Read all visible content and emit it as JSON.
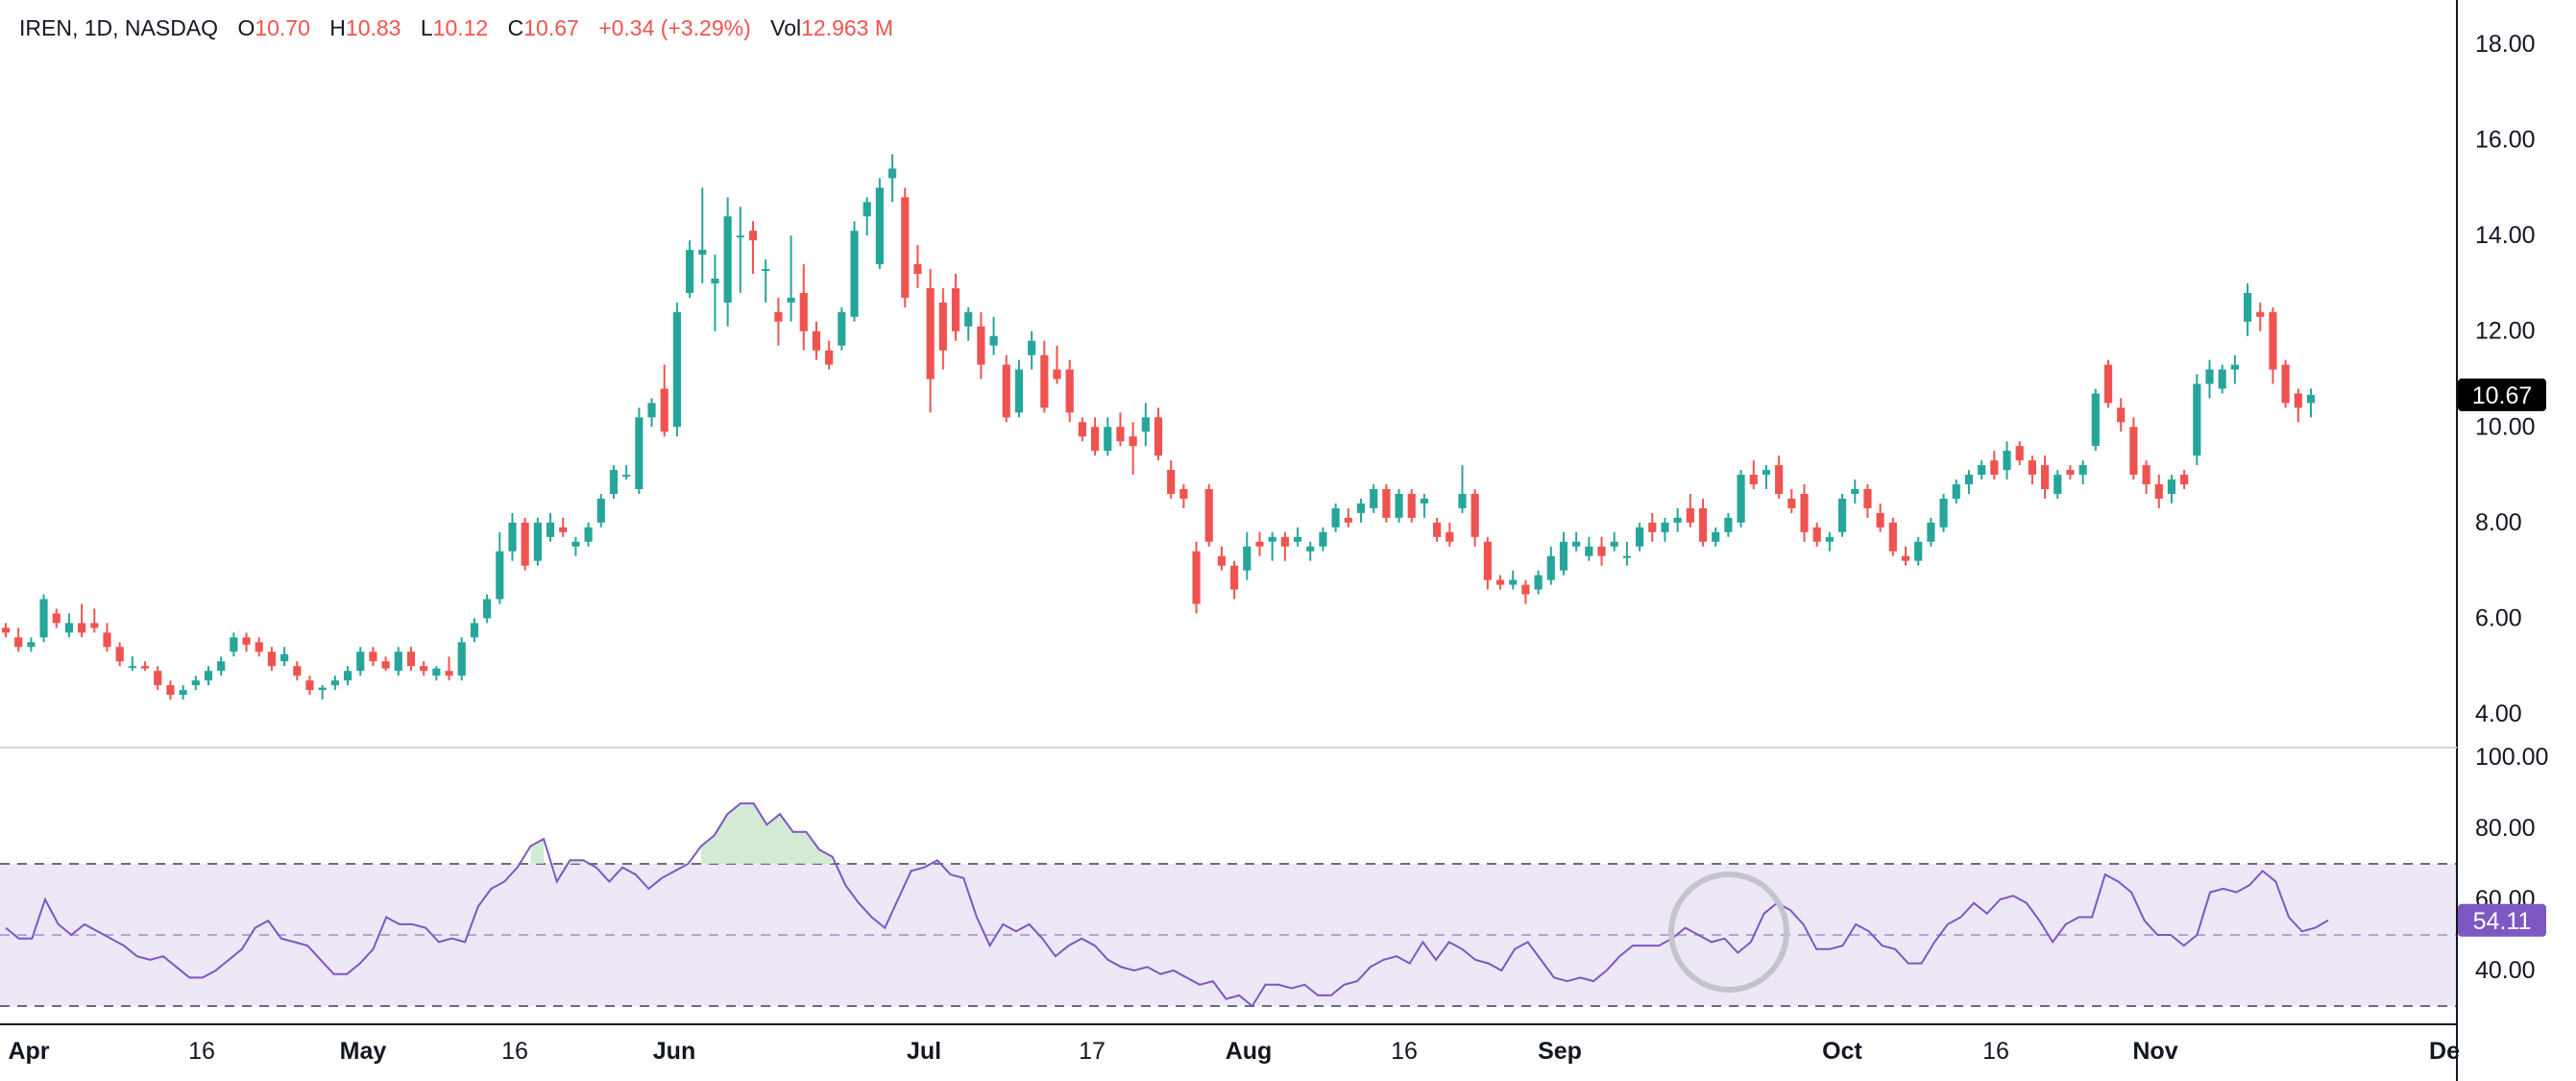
{
  "header": {
    "symbol_line": "IREN, 1D, NASDAQ",
    "open_label": "O",
    "open": "10.70",
    "high_label": "H",
    "high": "10.83",
    "low_label": "L",
    "low": "10.12",
    "close_label": "C",
    "close": "10.67",
    "change": "+0.34 (+3.29%)",
    "volume_label": "Vol",
    "volume": "12.963 M"
  },
  "colors": {
    "up": "#26a69a",
    "down": "#ef5350",
    "rsi_line": "#7e57c2",
    "rsi_band": "#ede7f6",
    "overbought_fill": "#c8e6c9",
    "grid": "#d1d4dc",
    "axis_text": "#131722",
    "last_price_bg": "#000000",
    "rsi_badge_bg": "#7e57c2"
  },
  "chart_data": [
    {
      "type": "candlestick",
      "title": "IREN, 1D, NASDAQ",
      "price_axis": {
        "ticks": [
          "18.00",
          "16.00",
          "14.00",
          "12.00",
          "10.00",
          "8.00",
          "6.00",
          "4.00"
        ]
      },
      "ylim": [
        3.4,
        18.6
      ],
      "time_axis": {
        "labels": [
          "Apr",
          "16",
          "May",
          "16",
          "Jun",
          "Jul",
          "17",
          "Aug",
          "16",
          "Sep",
          "Oct",
          "16",
          "Nov",
          "De"
        ],
        "bold": [
          "Apr",
          "May",
          "Jun",
          "Jul",
          "Aug",
          "Sep",
          "Oct",
          "Nov",
          "De"
        ]
      },
      "last_price_label": "10.67",
      "candles": [
        [
          5.8,
          5.9,
          5.6,
          5.7
        ],
        [
          5.6,
          5.8,
          5.3,
          5.4
        ],
        [
          5.4,
          5.6,
          5.3,
          5.5
        ],
        [
          5.6,
          6.5,
          5.5,
          6.4
        ],
        [
          6.1,
          6.2,
          5.8,
          5.9
        ],
        [
          5.7,
          6.1,
          5.6,
          5.9
        ],
        [
          5.9,
          6.3,
          5.6,
          5.7
        ],
        [
          5.9,
          6.2,
          5.7,
          5.8
        ],
        [
          5.7,
          5.9,
          5.3,
          5.4
        ],
        [
          5.4,
          5.5,
          5.0,
          5.1
        ],
        [
          5.0,
          5.2,
          4.9,
          5.0
        ],
        [
          5.0,
          5.1,
          4.9,
          4.95
        ],
        [
          4.9,
          5.0,
          4.5,
          4.6
        ],
        [
          4.6,
          4.7,
          4.3,
          4.4
        ],
        [
          4.4,
          4.6,
          4.3,
          4.5
        ],
        [
          4.6,
          4.8,
          4.5,
          4.7
        ],
        [
          4.7,
          5.0,
          4.6,
          4.9
        ],
        [
          4.9,
          5.2,
          4.8,
          5.1
        ],
        [
          5.3,
          5.7,
          5.2,
          5.6
        ],
        [
          5.6,
          5.7,
          5.3,
          5.45
        ],
        [
          5.5,
          5.6,
          5.2,
          5.3
        ],
        [
          5.3,
          5.4,
          4.9,
          5.0
        ],
        [
          5.1,
          5.4,
          5.0,
          5.25
        ],
        [
          5.0,
          5.1,
          4.7,
          4.8
        ],
        [
          4.7,
          4.8,
          4.4,
          4.5
        ],
        [
          4.5,
          4.6,
          4.3,
          4.55
        ],
        [
          4.6,
          4.8,
          4.5,
          4.7
        ],
        [
          4.7,
          5.0,
          4.6,
          4.9
        ],
        [
          4.9,
          5.4,
          4.8,
          5.3
        ],
        [
          5.3,
          5.4,
          5.0,
          5.1
        ],
        [
          5.1,
          5.2,
          4.9,
          4.95
        ],
        [
          4.9,
          5.4,
          4.8,
          5.3
        ],
        [
          5.3,
          5.4,
          4.9,
          5.0
        ],
        [
          5.0,
          5.1,
          4.8,
          4.9
        ],
        [
          4.8,
          5.0,
          4.7,
          4.95
        ],
        [
          4.9,
          5.2,
          4.7,
          4.8
        ],
        [
          4.8,
          5.6,
          4.7,
          5.5
        ],
        [
          5.6,
          6.0,
          5.5,
          5.9
        ],
        [
          6.0,
          6.5,
          5.9,
          6.4
        ],
        [
          6.4,
          7.8,
          6.3,
          7.4
        ],
        [
          7.4,
          8.2,
          7.2,
          8.0
        ],
        [
          8.0,
          8.1,
          7.0,
          7.1
        ],
        [
          7.2,
          8.1,
          7.1,
          8.0
        ],
        [
          7.7,
          8.2,
          7.6,
          8.0
        ],
        [
          7.9,
          8.1,
          7.7,
          7.8
        ],
        [
          7.5,
          7.7,
          7.3,
          7.6
        ],
        [
          7.6,
          8.0,
          7.5,
          7.9
        ],
        [
          8.0,
          8.6,
          7.9,
          8.5
        ],
        [
          8.6,
          9.2,
          8.5,
          9.1
        ],
        [
          9.0,
          9.2,
          8.9,
          9.0
        ],
        [
          8.7,
          10.4,
          8.6,
          10.2
        ],
        [
          10.2,
          10.6,
          10.0,
          10.5
        ],
        [
          10.8,
          11.3,
          9.8,
          9.9
        ],
        [
          10.0,
          12.6,
          9.8,
          12.4
        ],
        [
          12.8,
          13.9,
          12.7,
          13.7
        ],
        [
          13.6,
          15.0,
          13.0,
          13.7
        ],
        [
          13.0,
          13.6,
          12.0,
          13.1
        ],
        [
          12.6,
          14.8,
          12.1,
          14.4
        ],
        [
          14.0,
          14.6,
          12.8,
          14.0
        ],
        [
          14.1,
          14.3,
          13.2,
          13.9
        ],
        [
          13.3,
          13.5,
          12.6,
          13.3
        ],
        [
          12.4,
          12.7,
          11.7,
          12.2
        ],
        [
          12.6,
          14.0,
          12.2,
          12.7
        ],
        [
          12.8,
          13.4,
          11.6,
          12.0
        ],
        [
          12.0,
          12.2,
          11.4,
          11.6
        ],
        [
          11.6,
          11.8,
          11.2,
          11.3
        ],
        [
          11.7,
          12.5,
          11.6,
          12.4
        ],
        [
          12.3,
          14.3,
          12.2,
          14.1
        ],
        [
          14.4,
          14.8,
          14.0,
          14.7
        ],
        [
          13.4,
          15.2,
          13.3,
          15.0
        ],
        [
          15.2,
          15.7,
          14.7,
          15.4
        ],
        [
          14.8,
          15.0,
          12.5,
          12.7
        ],
        [
          13.4,
          13.8,
          12.9,
          13.2
        ],
        [
          12.9,
          13.3,
          10.3,
          11.0
        ],
        [
          12.6,
          12.9,
          11.2,
          11.6
        ],
        [
          12.9,
          13.2,
          11.8,
          12.0
        ],
        [
          12.1,
          12.5,
          11.8,
          12.4
        ],
        [
          12.1,
          12.4,
          11.0,
          11.3
        ],
        [
          11.7,
          12.3,
          11.5,
          11.9
        ],
        [
          11.3,
          11.5,
          10.1,
          10.2
        ],
        [
          10.3,
          11.4,
          10.2,
          11.2
        ],
        [
          11.5,
          12.0,
          11.2,
          11.8
        ],
        [
          11.5,
          11.8,
          10.3,
          10.4
        ],
        [
          11.2,
          11.7,
          10.9,
          11.0
        ],
        [
          11.2,
          11.4,
          10.1,
          10.3
        ],
        [
          10.1,
          10.2,
          9.7,
          9.8
        ],
        [
          10.0,
          10.2,
          9.4,
          9.5
        ],
        [
          9.5,
          10.2,
          9.4,
          10.0
        ],
        [
          10.0,
          10.3,
          9.6,
          9.7
        ],
        [
          9.8,
          10.1,
          9.0,
          9.6
        ],
        [
          9.9,
          10.5,
          9.6,
          10.2
        ],
        [
          10.2,
          10.4,
          9.3,
          9.4
        ],
        [
          9.1,
          9.3,
          8.5,
          8.6
        ],
        [
          8.7,
          8.8,
          8.3,
          8.5
        ],
        [
          7.4,
          7.6,
          6.1,
          6.3
        ],
        [
          8.7,
          8.8,
          7.5,
          7.6
        ],
        [
          7.3,
          7.5,
          7.0,
          7.1
        ],
        [
          7.1,
          7.2,
          6.4,
          6.6
        ],
        [
          7.0,
          7.8,
          6.8,
          7.5
        ],
        [
          7.6,
          7.8,
          7.3,
          7.5
        ],
        [
          7.6,
          7.8,
          7.2,
          7.7
        ],
        [
          7.7,
          7.8,
          7.2,
          7.5
        ],
        [
          7.6,
          7.9,
          7.5,
          7.7
        ],
        [
          7.4,
          7.6,
          7.2,
          7.5
        ],
        [
          7.5,
          7.9,
          7.4,
          7.8
        ],
        [
          7.9,
          8.4,
          7.8,
          8.3
        ],
        [
          8.1,
          8.3,
          7.9,
          8.0
        ],
        [
          8.2,
          8.5,
          8.0,
          8.4
        ],
        [
          8.3,
          8.8,
          8.2,
          8.7
        ],
        [
          8.7,
          8.8,
          8.0,
          8.1
        ],
        [
          8.1,
          8.7,
          8.0,
          8.6
        ],
        [
          8.6,
          8.7,
          8.0,
          8.1
        ],
        [
          8.4,
          8.6,
          8.1,
          8.5
        ],
        [
          8.0,
          8.1,
          7.6,
          7.7
        ],
        [
          7.8,
          8.0,
          7.5,
          7.6
        ],
        [
          8.3,
          9.2,
          8.2,
          8.6
        ],
        [
          8.6,
          8.7,
          7.5,
          7.7
        ],
        [
          7.6,
          7.7,
          6.6,
          6.8
        ],
        [
          6.8,
          6.9,
          6.6,
          6.7
        ],
        [
          6.7,
          7.0,
          6.6,
          6.8
        ],
        [
          6.7,
          6.8,
          6.3,
          6.5
        ],
        [
          6.6,
          7.0,
          6.5,
          6.9
        ],
        [
          6.8,
          7.5,
          6.7,
          7.3
        ],
        [
          7.0,
          7.8,
          6.9,
          7.6
        ],
        [
          7.5,
          7.8,
          7.4,
          7.6
        ],
        [
          7.3,
          7.7,
          7.2,
          7.5
        ],
        [
          7.5,
          7.7,
          7.1,
          7.3
        ],
        [
          7.5,
          7.8,
          7.4,
          7.6
        ],
        [
          7.3,
          7.6,
          7.1,
          7.3
        ],
        [
          7.5,
          8.0,
          7.4,
          7.9
        ],
        [
          8.0,
          8.2,
          7.6,
          7.8
        ],
        [
          7.8,
          8.1,
          7.6,
          8.0
        ],
        [
          8.0,
          8.3,
          7.8,
          8.1
        ],
        [
          8.3,
          8.6,
          7.9,
          8.0
        ],
        [
          8.3,
          8.5,
          7.5,
          7.6
        ],
        [
          7.6,
          7.9,
          7.5,
          7.8
        ],
        [
          7.8,
          8.2,
          7.7,
          8.1
        ],
        [
          8.0,
          9.1,
          7.9,
          9.0
        ],
        [
          9.0,
          9.3,
          8.7,
          8.8
        ],
        [
          9.0,
          9.2,
          8.7,
          9.1
        ],
        [
          9.2,
          9.4,
          8.5,
          8.6
        ],
        [
          8.5,
          8.7,
          8.2,
          8.3
        ],
        [
          8.6,
          8.8,
          7.6,
          7.8
        ],
        [
          7.9,
          8.0,
          7.5,
          7.6
        ],
        [
          7.6,
          7.8,
          7.4,
          7.7
        ],
        [
          7.8,
          8.6,
          7.7,
          8.5
        ],
        [
          8.6,
          8.9,
          8.4,
          8.7
        ],
        [
          8.7,
          8.8,
          8.1,
          8.3
        ],
        [
          8.2,
          8.4,
          7.8,
          7.9
        ],
        [
          8.0,
          8.1,
          7.3,
          7.4
        ],
        [
          7.3,
          7.5,
          7.1,
          7.2
        ],
        [
          7.2,
          7.7,
          7.1,
          7.6
        ],
        [
          7.6,
          8.1,
          7.5,
          8.0
        ],
        [
          7.9,
          8.6,
          7.8,
          8.5
        ],
        [
          8.5,
          8.9,
          8.4,
          8.8
        ],
        [
          8.8,
          9.1,
          8.6,
          9.0
        ],
        [
          9.0,
          9.3,
          8.9,
          9.2
        ],
        [
          9.3,
          9.5,
          8.9,
          9.0
        ],
        [
          9.1,
          9.7,
          8.9,
          9.5
        ],
        [
          9.6,
          9.7,
          9.2,
          9.3
        ],
        [
          9.3,
          9.4,
          8.8,
          9.0
        ],
        [
          9.2,
          9.4,
          8.5,
          8.7
        ],
        [
          8.6,
          9.1,
          8.5,
          9.0
        ],
        [
          9.1,
          9.2,
          8.9,
          9.0
        ],
        [
          9.0,
          9.3,
          8.8,
          9.2
        ],
        [
          9.6,
          10.8,
          9.5,
          10.7
        ],
        [
          11.3,
          11.4,
          10.4,
          10.5
        ],
        [
          10.4,
          10.6,
          9.9,
          10.1
        ],
        [
          10.0,
          10.2,
          8.9,
          9.0
        ],
        [
          9.2,
          9.3,
          8.6,
          8.8
        ],
        [
          8.8,
          9.0,
          8.3,
          8.5
        ],
        [
          8.6,
          9.0,
          8.4,
          8.9
        ],
        [
          9.0,
          9.1,
          8.7,
          8.8
        ],
        [
          9.4,
          11.1,
          9.2,
          10.9
        ],
        [
          10.9,
          11.4,
          10.6,
          11.2
        ],
        [
          10.8,
          11.3,
          10.7,
          11.2
        ],
        [
          11.2,
          11.5,
          10.9,
          11.3
        ],
        [
          12.2,
          13.0,
          11.9,
          12.8
        ],
        [
          12.4,
          12.6,
          12.0,
          12.3
        ],
        [
          12.4,
          12.5,
          10.9,
          11.2
        ],
        [
          11.3,
          11.4,
          10.4,
          10.5
        ],
        [
          10.7,
          10.8,
          10.1,
          10.4
        ],
        [
          10.5,
          10.8,
          10.2,
          10.67
        ]
      ]
    },
    {
      "type": "line",
      "title": "",
      "axis": {
        "ticks": [
          "100.00",
          "80.00",
          "60.00",
          "40.00"
        ]
      },
      "ylim": [
        28,
        100
      ],
      "bands": {
        "upper": 70,
        "middle": 50,
        "lower": 30
      },
      "last_value_label": "54.11",
      "values": [
        52,
        49,
        49,
        60,
        53,
        50,
        53,
        51,
        49,
        47,
        44,
        43,
        44,
        41,
        38,
        38,
        40,
        43,
        46,
        52,
        54,
        49,
        48,
        47,
        43,
        39,
        39,
        42,
        46,
        55,
        53,
        53,
        52,
        48,
        49,
        48,
        58,
        63,
        65,
        69,
        75,
        77,
        65,
        71,
        71,
        69,
        65,
        69,
        67,
        63,
        66,
        68,
        70,
        75,
        78,
        84,
        87,
        87,
        81,
        84,
        79,
        79,
        74,
        72,
        64,
        59,
        55,
        52,
        60,
        68,
        69,
        71,
        67,
        66,
        55,
        47,
        53,
        51,
        53,
        49,
        44,
        47,
        49,
        47,
        43,
        41,
        40,
        41,
        39,
        40,
        38,
        36,
        37,
        32,
        33,
        30,
        36,
        36,
        35,
        36,
        33,
        33,
        36,
        37,
        41,
        43,
        44,
        42,
        48,
        43,
        48,
        46,
        43,
        42,
        40,
        46,
        48,
        43,
        38,
        37,
        38,
        37,
        40,
        44,
        47,
        47,
        47,
        49,
        52,
        50,
        48,
        49,
        45,
        48,
        56,
        59,
        57,
        53,
        46,
        46,
        47,
        53,
        51,
        47,
        46,
        42,
        42,
        48,
        53,
        55,
        59,
        56,
        60,
        61,
        59,
        54,
        48,
        53,
        55,
        55,
        67,
        65,
        62,
        54,
        50,
        50,
        47,
        50,
        62,
        63,
        62,
        64,
        68,
        65,
        55,
        51,
        52,
        54.11
      ]
    }
  ]
}
